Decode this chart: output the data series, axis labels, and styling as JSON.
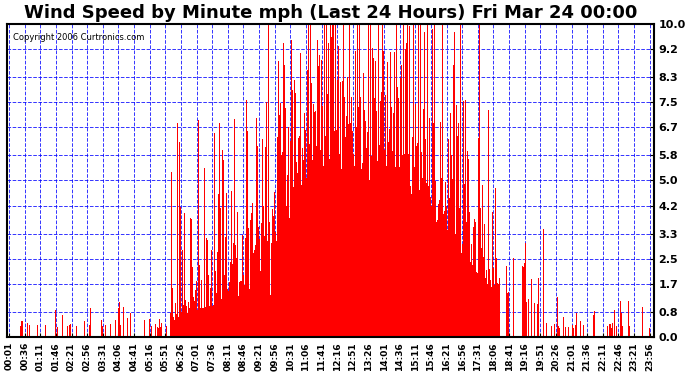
{
  "title": "Wind Speed by Minute mph (Last 24 Hours) Fri Mar 24 00:00",
  "copyright": "Copyright 2006 Curtronics.com",
  "yticks": [
    0.0,
    0.8,
    1.7,
    2.5,
    3.3,
    4.2,
    5.0,
    5.8,
    6.7,
    7.5,
    8.3,
    9.2,
    10.0
  ],
  "ylim": [
    0.0,
    10.0
  ],
  "bar_color": "#ff0000",
  "grid_color": "#0000ff",
  "background_color": "#ffffff",
  "plot_bg_color": "#ffffff",
  "title_fontsize": 13,
  "figsize": [
    6.9,
    3.75
  ],
  "dpi": 100
}
